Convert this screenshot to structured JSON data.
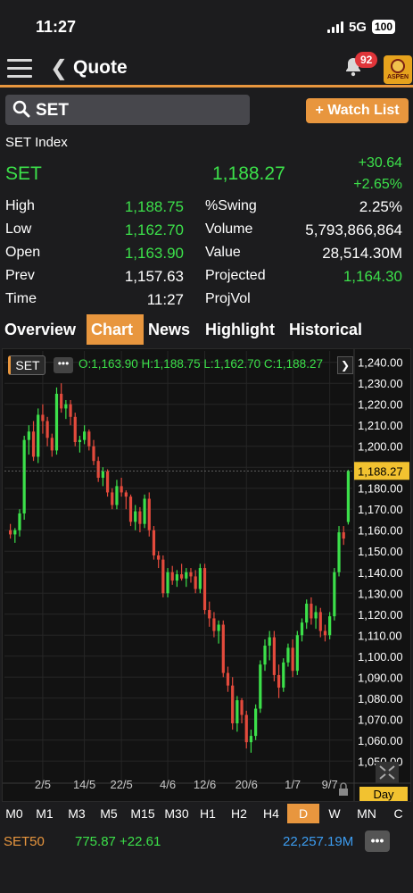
{
  "status_bar": {
    "time": "11:27",
    "network": "5G",
    "battery": "100"
  },
  "header": {
    "title": "Quote",
    "notifications": "92",
    "logo_text": "ASPEN"
  },
  "search": {
    "value": "SET",
    "watch_label": "+ Watch List"
  },
  "quote": {
    "index_name": "SET Index",
    "symbol": "SET",
    "last": "1,188.27",
    "change": "+30.64",
    "change_pct": "+2.65%",
    "left": [
      {
        "label": "High",
        "value": "1,188.75",
        "color": "#3ce04a"
      },
      {
        "label": "Low",
        "value": "1,162.70",
        "color": "#3ce04a"
      },
      {
        "label": "Open",
        "value": "1,163.90",
        "color": "#3ce04a"
      },
      {
        "label": "Prev",
        "value": "1,157.63",
        "color": "#ffffff"
      },
      {
        "label": "Time",
        "value": "11:27",
        "color": "#ffffff"
      }
    ],
    "right": [
      {
        "label": "%Swing",
        "value": "2.25%",
        "color": "#ffffff"
      },
      {
        "label": "Volume",
        "value": "5,793,866,864",
        "color": "#ffffff"
      },
      {
        "label": "Value",
        "value": "28,514.30M",
        "color": "#ffffff"
      },
      {
        "label": "Projected",
        "value": "1,164.30",
        "color": "#3ce04a"
      },
      {
        "label": "ProjVol",
        "value": "",
        "color": "#ffffff"
      }
    ]
  },
  "tabs": [
    "Overview",
    "Chart",
    "News",
    "Highlight",
    "Historical"
  ],
  "active_tab": "Chart",
  "chart_header": {
    "symbol": "SET",
    "ohlc": "O:1,163.90 H:1,188.75 L:1,162.70 C:1,188.27"
  },
  "chart_data": {
    "type": "candlestick",
    "yticks": [
      "1,240.00",
      "1,230.00",
      "1,220.00",
      "1,210.00",
      "1,200.00",
      "1,190.00",
      "1,180.00",
      "1,170.00",
      "1,160.00",
      "1,150.00",
      "1,140.00",
      "1,130.00",
      "1,120.00",
      "1,110.00",
      "1,100.00",
      "1,090.00",
      "1,080.00",
      "1,070.00",
      "1,060.00",
      "1,050.00"
    ],
    "ylim": [
      1048,
      1242
    ],
    "current_label": "1,188.27",
    "current_value": 1188.27,
    "xticks": [
      {
        "label": "2/5",
        "index": 7
      },
      {
        "label": "14/5",
        "index": 16
      },
      {
        "label": "22/5",
        "index": 24
      },
      {
        "label": "4/6",
        "index": 34
      },
      {
        "label": "12/6",
        "index": 42
      },
      {
        "label": "20/6",
        "index": 51
      },
      {
        "label": "1/7",
        "index": 61
      },
      {
        "label": "9/7",
        "index": 69
      }
    ],
    "up_color": "#3ce04a",
    "down_color": "#e34a3c",
    "candles": [
      [
        1160,
        1163,
        1156,
        1158
      ],
      [
        1158,
        1161,
        1154,
        1160
      ],
      [
        1160,
        1170,
        1157,
        1168
      ],
      [
        1168,
        1205,
        1165,
        1203
      ],
      [
        1203,
        1210,
        1196,
        1207
      ],
      [
        1207,
        1212,
        1193,
        1195
      ],
      [
        1195,
        1218,
        1192,
        1215
      ],
      [
        1215,
        1220,
        1206,
        1212
      ],
      [
        1212,
        1214,
        1200,
        1204
      ],
      [
        1204,
        1206,
        1195,
        1198
      ],
      [
        1198,
        1228,
        1196,
        1225
      ],
      [
        1225,
        1230,
        1216,
        1218
      ],
      [
        1218,
        1222,
        1213,
        1220
      ],
      [
        1220,
        1222,
        1210,
        1214
      ],
      [
        1214,
        1216,
        1200,
        1202
      ],
      [
        1202,
        1205,
        1197,
        1203
      ],
      [
        1203,
        1210,
        1201,
        1207
      ],
      [
        1207,
        1208,
        1198,
        1200
      ],
      [
        1200,
        1203,
        1191,
        1193
      ],
      [
        1193,
        1195,
        1183,
        1185
      ],
      [
        1185,
        1190,
        1181,
        1188
      ],
      [
        1188,
        1189,
        1176,
        1178
      ],
      [
        1178,
        1180,
        1170,
        1172
      ],
      [
        1172,
        1184,
        1170,
        1181
      ],
      [
        1181,
        1185,
        1176,
        1178
      ],
      [
        1178,
        1179,
        1170,
        1176
      ],
      [
        1176,
        1177,
        1162,
        1164
      ],
      [
        1164,
        1172,
        1160,
        1169
      ],
      [
        1169,
        1171,
        1159,
        1163
      ],
      [
        1163,
        1177,
        1161,
        1175
      ],
      [
        1175,
        1178,
        1157,
        1160
      ],
      [
        1160,
        1162,
        1146,
        1148
      ],
      [
        1148,
        1150,
        1142,
        1146
      ],
      [
        1146,
        1148,
        1128,
        1130
      ],
      [
        1130,
        1142,
        1128,
        1140
      ],
      [
        1140,
        1143,
        1134,
        1136
      ],
      [
        1136,
        1141,
        1133,
        1139
      ],
      [
        1139,
        1144,
        1136,
        1137
      ],
      [
        1137,
        1142,
        1133,
        1140
      ],
      [
        1140,
        1142,
        1135,
        1138
      ],
      [
        1138,
        1141,
        1130,
        1132
      ],
      [
        1132,
        1144,
        1130,
        1142
      ],
      [
        1142,
        1144,
        1120,
        1122
      ],
      [
        1122,
        1126,
        1114,
        1118
      ],
      [
        1118,
        1121,
        1109,
        1112
      ],
      [
        1112,
        1117,
        1106,
        1115
      ],
      [
        1115,
        1117,
        1090,
        1092
      ],
      [
        1092,
        1095,
        1083,
        1086
      ],
      [
        1086,
        1090,
        1065,
        1068
      ],
      [
        1068,
        1081,
        1064,
        1079
      ],
      [
        1079,
        1080,
        1068,
        1072
      ],
      [
        1072,
        1074,
        1056,
        1059
      ],
      [
        1059,
        1065,
        1054,
        1062
      ],
      [
        1062,
        1077,
        1060,
        1075
      ],
      [
        1075,
        1098,
        1073,
        1096
      ],
      [
        1096,
        1108,
        1093,
        1105
      ],
      [
        1105,
        1112,
        1098,
        1109
      ],
      [
        1109,
        1112,
        1088,
        1091
      ],
      [
        1091,
        1096,
        1080,
        1085
      ],
      [
        1085,
        1099,
        1083,
        1097
      ],
      [
        1097,
        1106,
        1095,
        1104
      ],
      [
        1104,
        1108,
        1090,
        1093
      ],
      [
        1093,
        1112,
        1091,
        1110
      ],
      [
        1110,
        1118,
        1107,
        1116
      ],
      [
        1116,
        1127,
        1113,
        1125
      ],
      [
        1125,
        1128,
        1115,
        1118
      ],
      [
        1118,
        1124,
        1113,
        1121
      ],
      [
        1121,
        1123,
        1109,
        1112
      ],
      [
        1112,
        1115,
        1107,
        1110
      ],
      [
        1110,
        1121,
        1108,
        1119
      ],
      [
        1119,
        1142,
        1117,
        1140
      ],
      [
        1140,
        1162,
        1138,
        1159
      ],
      [
        1159,
        1162,
        1153,
        1156
      ],
      [
        1163.9,
        1188.75,
        1162.7,
        1188.27
      ]
    ]
  },
  "timeframes": [
    "M0",
    "M1",
    "M3",
    "M5",
    "M15",
    "M30",
    "H1",
    "H2",
    "H4",
    "D",
    "W",
    "MN",
    "C"
  ],
  "active_timeframe": "D",
  "chart_period": "Day",
  "footer": {
    "symbol": "SET50",
    "value": "775.87 +22.61",
    "volume": "22,257.19M"
  }
}
